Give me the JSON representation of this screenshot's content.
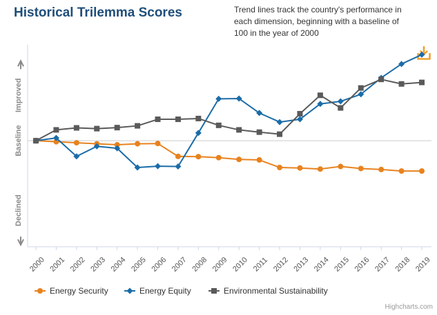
{
  "header": {
    "title": "Historical Trilemma Scores",
    "subtitle": "Trend lines track the country's performance in each dimension, beginning with a baseline of 100 in the year of 2000"
  },
  "credits": "Highcharts.com",
  "colors": {
    "energy_security": "#e8821e",
    "energy_equity": "#1b6ca8",
    "environmental_sustainability": "#5a5a5a",
    "download": "#f0a030",
    "baseline": "#cccccc",
    "axis_label": "#8a8a8a"
  },
  "chart_data": {
    "type": "line",
    "title": "Historical Trilemma Scores",
    "x": [
      "2000",
      "2001",
      "2002",
      "2003",
      "2004",
      "2005",
      "2006",
      "2007",
      "2008",
      "2009",
      "2010",
      "2011",
      "2012",
      "2013",
      "2014",
      "2015",
      "2016",
      "2017",
      "2018",
      "2019"
    ],
    "ylim": [
      58,
      138
    ],
    "baseline": 100,
    "y_axis_labels": {
      "upper": "Improved",
      "middle": "Baseline",
      "lower": "Declined"
    },
    "series": [
      {
        "name": "Energy Security",
        "key": "energy_security",
        "marker": "circle",
        "values": [
          100,
          99.6,
          99.2,
          98.8,
          98.4,
          98.8,
          98.9,
          93.8,
          93.7,
          93.3,
          92.6,
          92.4,
          89.4,
          89.2,
          88.8,
          89.8,
          89.0,
          88.6,
          88.0,
          88.0
        ]
      },
      {
        "name": "Energy Equity",
        "key": "energy_equity",
        "marker": "diamond",
        "values": [
          100,
          101.1,
          93.8,
          97.8,
          97.0,
          89.4,
          89.9,
          89.8,
          103.1,
          116.6,
          116.7,
          111.0,
          107.4,
          108.5,
          114.6,
          115.6,
          118.4,
          124.9,
          130.4,
          134.1
        ]
      },
      {
        "name": "Environmental Sustainability",
        "key": "environmental_sustainability",
        "marker": "square",
        "values": [
          100,
          104.3,
          105.1,
          104.8,
          105.2,
          105.9,
          108.5,
          108.5,
          108.8,
          106.1,
          104.3,
          103.4,
          102.6,
          110.7,
          118.0,
          113.0,
          120.9,
          124.3,
          122.5,
          123.1
        ]
      }
    ]
  }
}
